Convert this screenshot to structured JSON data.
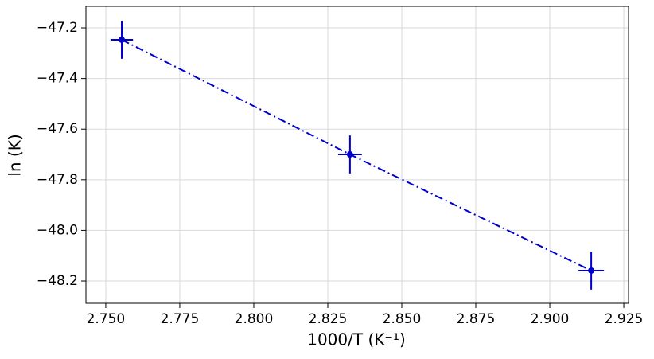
{
  "chart_data": {
    "type": "line",
    "x_label": "1000/T (K⁻¹)",
    "y_label": "ln (K)",
    "x": [
      2.7554,
      2.8325,
      2.914
    ],
    "series": [
      {
        "color": "#0000cd",
        "values": [
          -47.247,
          -47.7,
          -48.159
        ],
        "yerr": [
          0.075,
          0.075,
          0.075
        ],
        "xerr": [
          0.0038,
          0.004,
          0.0043
        ]
      }
    ],
    "line_style": "dashdot",
    "xlim": [
      2.7433,
      2.9266
    ],
    "ylim": [
      -48.288,
      -47.115
    ],
    "xticks": [
      {
        "value": 2.75,
        "label": "2.750"
      },
      {
        "value": 2.775,
        "label": "2.775"
      },
      {
        "value": 2.8,
        "label": "2.800"
      },
      {
        "value": 2.825,
        "label": "2.825"
      },
      {
        "value": 2.85,
        "label": "2.850"
      },
      {
        "value": 2.875,
        "label": "2.875"
      },
      {
        "value": 2.9,
        "label": "2.900"
      },
      {
        "value": 2.925,
        "label": "2.925"
      }
    ],
    "yticks": [
      {
        "value": -48.2,
        "label": "−48.2"
      },
      {
        "value": -48.0,
        "label": "−48.0"
      },
      {
        "value": -47.8,
        "label": "−47.8"
      },
      {
        "value": -47.6,
        "label": "−47.6"
      },
      {
        "value": -47.4,
        "label": "−47.4"
      },
      {
        "value": -47.2,
        "label": "−47.2"
      }
    ],
    "grid": true
  }
}
